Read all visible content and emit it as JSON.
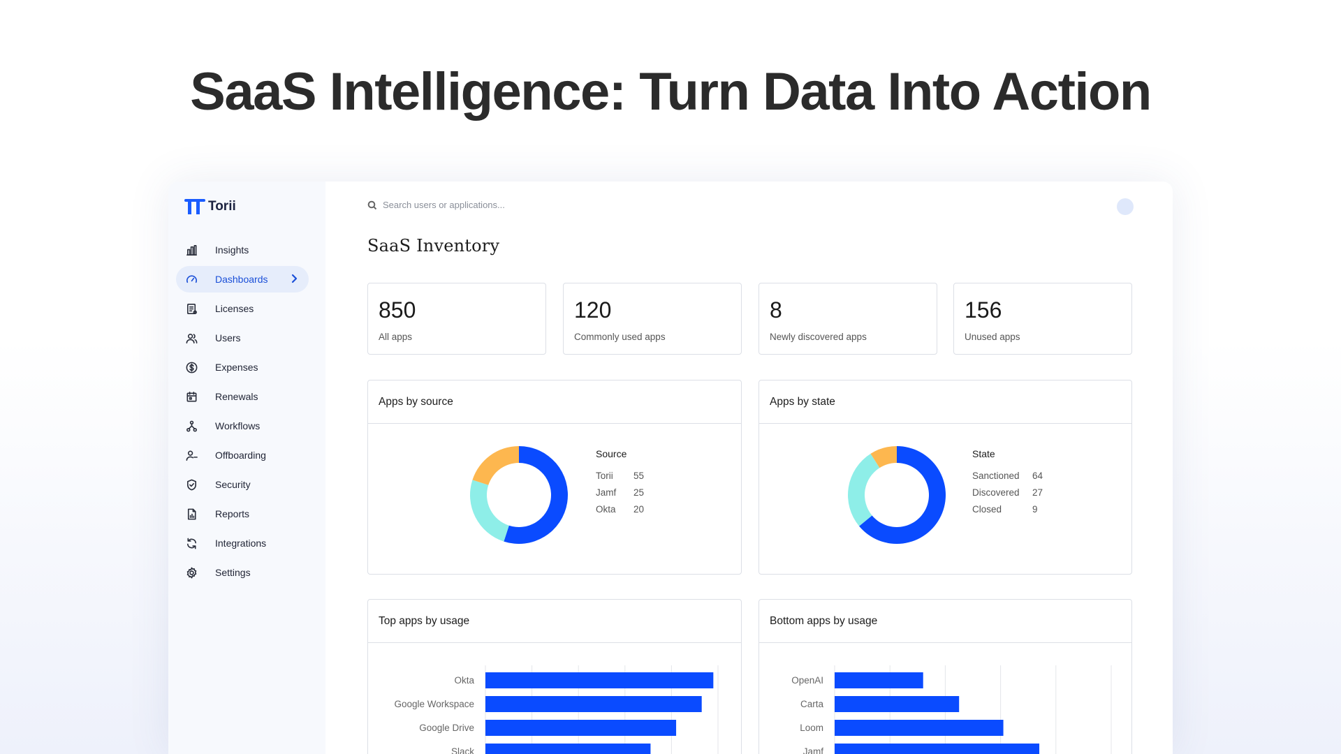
{
  "hero": {
    "title": "SaaS Intelligence: Turn Data Into Action"
  },
  "brand": {
    "name": "Torii",
    "accent": "#1a5cff"
  },
  "sidebar": {
    "items": [
      {
        "label": "Insights",
        "icon": "bar-chart-icon"
      },
      {
        "label": "Dashboards",
        "icon": "gauge-icon",
        "active": true
      },
      {
        "label": "Licenses",
        "icon": "license-icon"
      },
      {
        "label": "Users",
        "icon": "users-icon"
      },
      {
        "label": "Expenses",
        "icon": "dollar-icon"
      },
      {
        "label": "Renewals",
        "icon": "calendar-icon"
      },
      {
        "label": "Workflows",
        "icon": "workflow-icon"
      },
      {
        "label": "Offboarding",
        "icon": "user-minus-icon"
      },
      {
        "label": "Security",
        "icon": "shield-icon"
      },
      {
        "label": "Reports",
        "icon": "report-icon"
      },
      {
        "label": "Integrations",
        "icon": "refresh-icon"
      },
      {
        "label": "Settings",
        "icon": "gear-icon"
      }
    ]
  },
  "search": {
    "placeholder": "Search users or applications..."
  },
  "page": {
    "title": "SaaS Inventory"
  },
  "stats": [
    {
      "value": "850",
      "label": "All apps"
    },
    {
      "value": "120",
      "label": "Commonly used apps"
    },
    {
      "value": "8",
      "label": "Newly discovered apps"
    },
    {
      "value": "156",
      "label": "Unused apps"
    }
  ],
  "panels": {
    "source": {
      "title": "Apps by source",
      "legend_title": "Source"
    },
    "state": {
      "title": "Apps by state",
      "legend_title": "State"
    },
    "top": {
      "title": "Top apps by usage"
    },
    "bottom": {
      "title": "Bottom apps by usage"
    }
  },
  "colors": {
    "primary": "#0a4bff",
    "teal": "#8eeee8",
    "orange": "#fdb74f"
  },
  "chart_data": [
    {
      "type": "pie",
      "title": "Apps by source",
      "legend": "Source",
      "categories": [
        "Torii",
        "Jamf",
        "Okta"
      ],
      "values": [
        55,
        25,
        20
      ]
    },
    {
      "type": "pie",
      "title": "Apps by state",
      "legend": "State",
      "categories": [
        "Sanctioned",
        "Discovered",
        "Closed"
      ],
      "values": [
        64,
        27,
        9
      ]
    },
    {
      "type": "bar",
      "orientation": "horizontal",
      "title": "Top apps by usage",
      "categories": [
        "Okta",
        "Google Workspace",
        "Google Drive",
        "Slack"
      ],
      "values": [
        98,
        93,
        82,
        71
      ],
      "xlim": [
        0,
        100
      ],
      "grid": true
    },
    {
      "type": "bar",
      "orientation": "horizontal",
      "title": "Bottom apps by usage",
      "categories": [
        "OpenAI",
        "Carta",
        "Loom",
        "Jamf"
      ],
      "values": [
        32,
        45,
        61,
        74
      ],
      "xlim": [
        0,
        100
      ],
      "grid": true
    }
  ]
}
